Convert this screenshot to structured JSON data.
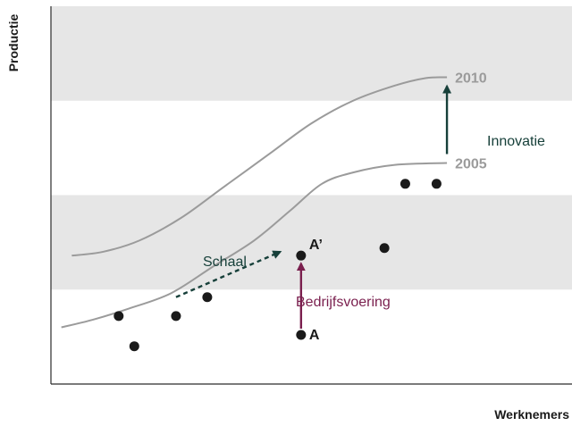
{
  "chart_data": {
    "type": "scatter",
    "xlabel": "Werknemers",
    "ylabel": "Productie",
    "curves": [
      {
        "name": "2010",
        "points": [
          [
            0.04,
            0.34
          ],
          [
            0.1,
            0.35
          ],
          [
            0.17,
            0.38
          ],
          [
            0.25,
            0.44
          ],
          [
            0.33,
            0.52
          ],
          [
            0.42,
            0.61
          ],
          [
            0.5,
            0.69
          ],
          [
            0.58,
            0.75
          ],
          [
            0.66,
            0.79
          ],
          [
            0.72,
            0.81
          ],
          [
            0.76,
            0.812
          ]
        ]
      },
      {
        "name": "2005",
        "points": [
          [
            0.02,
            0.15
          ],
          [
            0.08,
            0.17
          ],
          [
            0.15,
            0.2
          ],
          [
            0.23,
            0.24
          ],
          [
            0.31,
            0.31
          ],
          [
            0.39,
            0.38
          ],
          [
            0.46,
            0.46
          ],
          [
            0.52,
            0.53
          ],
          [
            0.58,
            0.56
          ],
          [
            0.66,
            0.58
          ],
          [
            0.76,
            0.585
          ]
        ]
      }
    ],
    "points": [
      {
        "x": 0.13,
        "y": 0.18
      },
      {
        "x": 0.16,
        "y": 0.1
      },
      {
        "x": 0.24,
        "y": 0.18
      },
      {
        "x": 0.3,
        "y": 0.23
      },
      {
        "x": 0.48,
        "y": 0.13,
        "label": "A"
      },
      {
        "x": 0.48,
        "y": 0.34,
        "label": "A’"
      },
      {
        "x": 0.64,
        "y": 0.36
      },
      {
        "x": 0.68,
        "y": 0.53
      },
      {
        "x": 0.74,
        "y": 0.53
      }
    ],
    "annotations": [
      {
        "text": "Bedrijfsvoering",
        "color": "#7a1f4e"
      },
      {
        "text": "Schaal",
        "color": "#17403a"
      },
      {
        "text": "Innovatie",
        "color": "#17403a"
      }
    ],
    "bands": [
      [
        0.75,
        1.0
      ],
      [
        0.25,
        0.5
      ]
    ],
    "xlim": [
      0,
      1
    ],
    "ylim": [
      0,
      1
    ],
    "grid": false,
    "colors": {
      "band": "#e6e6e6",
      "curve": "#9b9b9b",
      "axis": "#2b2b2b",
      "point": "#1a1a1a",
      "bedrijfsvoering": "#7a1f4e",
      "schaal": "#17403a",
      "innovatie": "#17403a"
    }
  }
}
